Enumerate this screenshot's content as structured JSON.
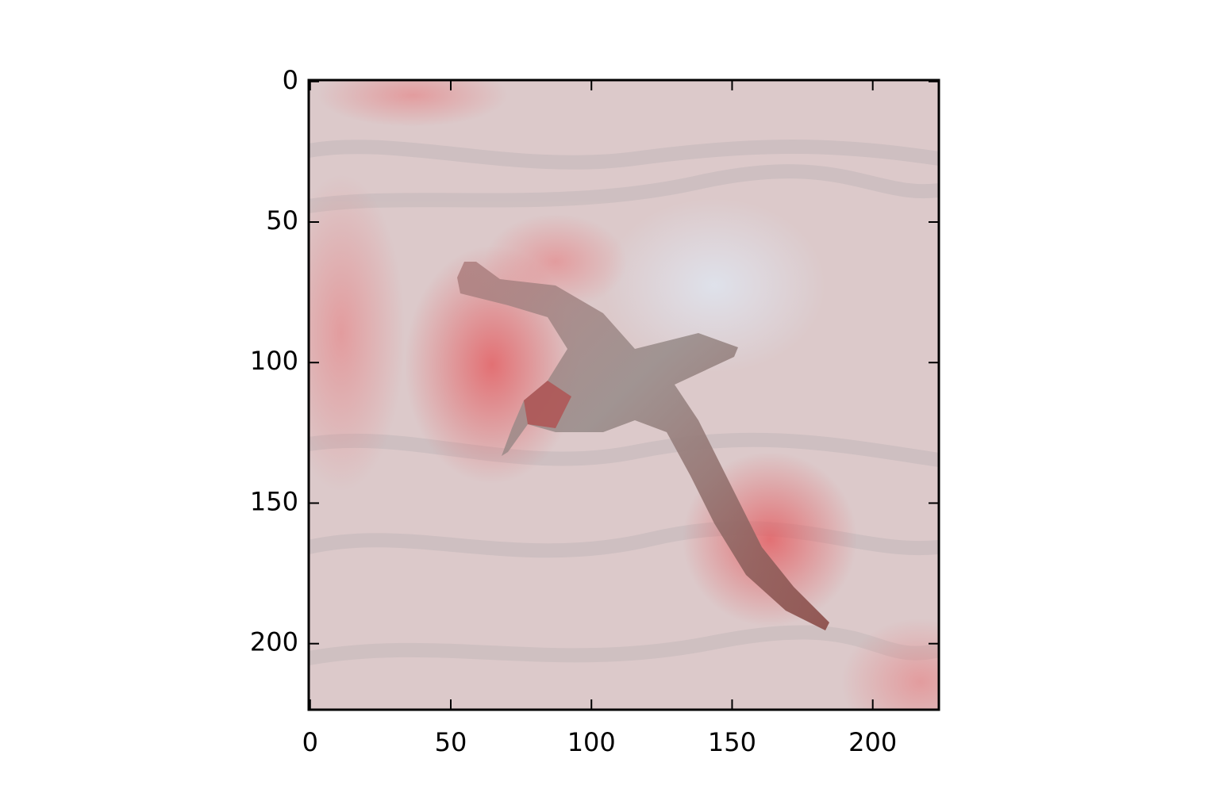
{
  "chart_data": {
    "type": "image",
    "xlim": [
      -0.5,
      223.5
    ],
    "ylim": [
      223.5,
      -0.5
    ],
    "xticks": [
      0,
      50,
      100,
      150,
      200
    ],
    "yticks": [
      0,
      50,
      100,
      150,
      200
    ]
  }
}
